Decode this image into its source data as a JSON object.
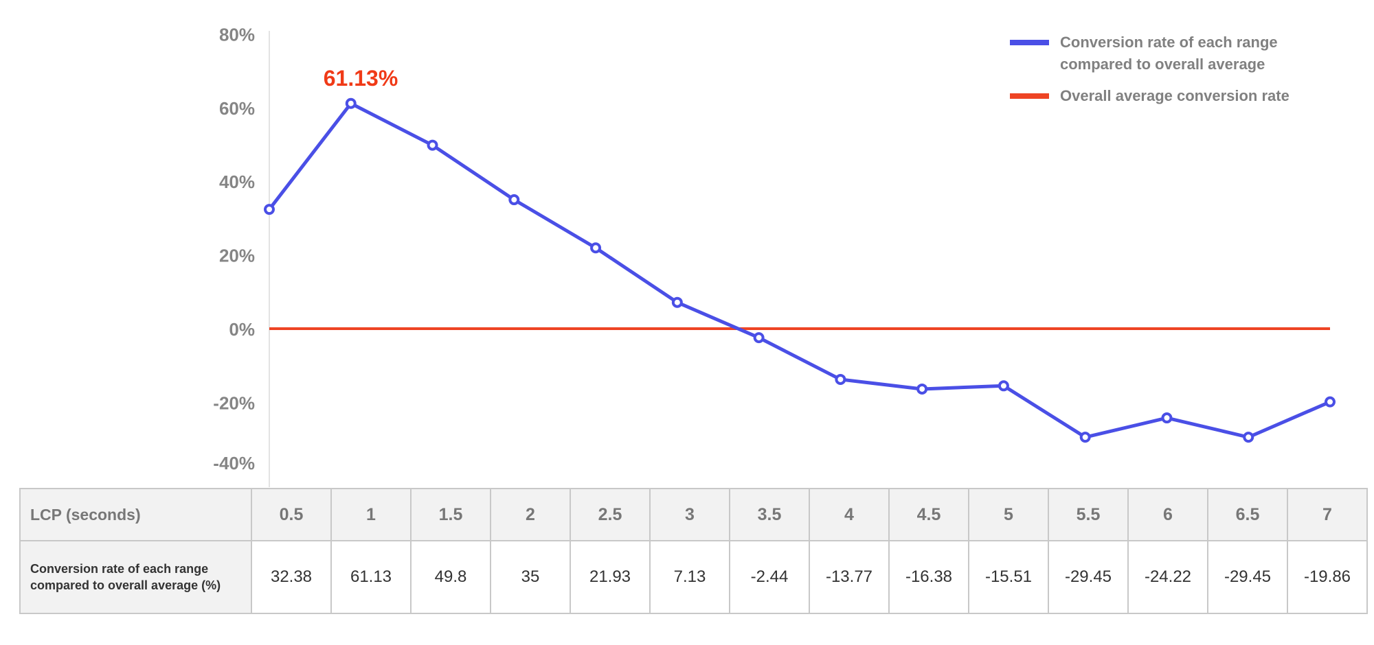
{
  "chart_data": {
    "type": "line",
    "x": [
      "0.5",
      "1",
      "1.5",
      "2",
      "2.5",
      "3",
      "3.5",
      "4",
      "4.5",
      "5",
      "5.5",
      "6",
      "6.5",
      "7"
    ],
    "series": [
      {
        "name": "Conversion rate of each range compared to overall average",
        "color": "#4a4fe6",
        "values": [
          32.38,
          61.13,
          49.8,
          35,
          21.93,
          7.13,
          -2.44,
          -13.77,
          -16.38,
          -15.51,
          -29.45,
          -24.22,
          -29.45,
          -19.86
        ]
      },
      {
        "name": "Overall average conversion rate",
        "color": "#ee4424",
        "values": [
          0,
          0,
          0,
          0,
          0,
          0,
          0,
          0,
          0,
          0,
          0,
          0,
          0,
          0
        ]
      }
    ],
    "ylim": [
      -40,
      80
    ],
    "yticks": [
      "80%",
      "60%",
      "40%",
      "20%",
      "0%",
      "-20%",
      "-40%"
    ],
    "ytick_values": [
      80,
      60,
      40,
      20,
      0,
      -20,
      -40
    ],
    "annotation": {
      "text": "61.13%",
      "color": "#f03a17"
    },
    "legend_position": "top-right",
    "grid": false
  },
  "table": {
    "header_label": "LCP (seconds)",
    "row_label": "Conversion rate of each range compared to overall average (%)",
    "headers": [
      "0.5",
      "1",
      "1.5",
      "2",
      "2.5",
      "3",
      "3.5",
      "4",
      "4.5",
      "5",
      "5.5",
      "6",
      "6.5",
      "7"
    ],
    "values": [
      "32.38",
      "61.13",
      "49.8",
      "35",
      "21.93",
      "7.13",
      "-2.44",
      "-13.77",
      "-16.38",
      "-15.51",
      "-29.45",
      "-24.22",
      "-29.45",
      "-19.86"
    ]
  }
}
